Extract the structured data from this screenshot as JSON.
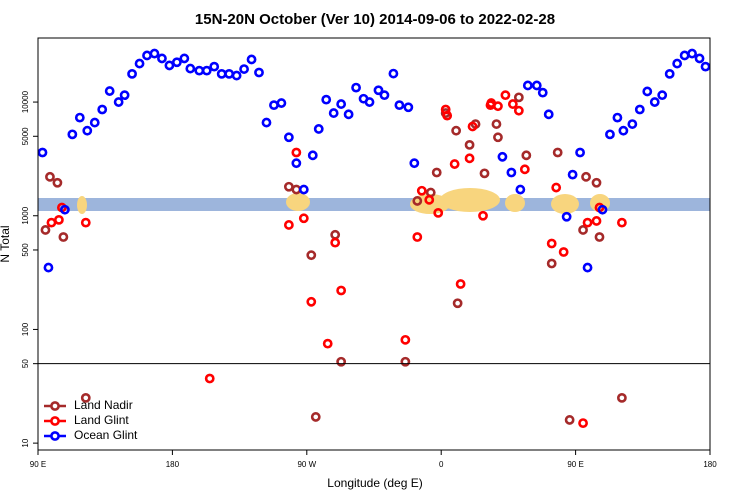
{
  "chart_data": {
    "type": "scatter",
    "title": "15N-20N October (Ver 10)   2014-09-06 to 2022-02-28",
    "x_label": "Longitude (deg E)",
    "y_label": "N Total",
    "xlim": [
      90,
      540
    ],
    "xticks": [
      {
        "value": 90,
        "label": "90 E"
      },
      180,
      {
        "value": 270,
        "label": "90 W"
      },
      {
        "value": 360,
        "label": "0"
      },
      {
        "value": 450,
        "label": "90 E"
      },
      {
        "value": 540,
        "label": "180"
      }
    ],
    "ylim": [
      8.7,
      36600
    ],
    "y_log": true,
    "yticks": [
      10,
      50,
      100,
      500,
      1000,
      5000,
      10000
    ],
    "hline": 50,
    "legend": "lower left",
    "series": [
      {
        "name": "Land Nadir",
        "color": "#a52a2a",
        "x": [
          95,
          98,
          103,
          107,
          122,
          258,
          263,
          273,
          276,
          289,
          293,
          336,
          344,
          353,
          357,
          363,
          370,
          371,
          379,
          383,
          389,
          397,
          398,
          412,
          417,
          434,
          438,
          446,
          455,
          457,
          464,
          466,
          481
        ],
        "values": [
          750,
          2200,
          1950,
          650,
          25,
          1800,
          1700,
          450,
          17,
          680,
          52,
          52,
          1350,
          1600,
          2400,
          8000,
          5600,
          170,
          4200,
          6400,
          2360,
          6400,
          4900,
          11000,
          3400,
          380,
          3600,
          16,
          750,
          2200,
          1950,
          650,
          25
        ]
      },
      {
        "name": "Land Glint",
        "color": "#ff0000",
        "x": [
          99,
          104,
          106,
          122,
          205,
          258,
          263,
          268,
          273,
          284,
          289,
          293,
          336,
          344,
          347,
          352,
          358,
          363,
          364,
          369,
          373,
          379,
          381,
          388,
          393,
          393.5,
          398,
          403,
          408,
          412,
          416,
          434,
          437,
          442,
          455,
          458,
          464,
          466,
          481
        ],
        "values": [
          870,
          920,
          1180,
          870,
          37,
          830,
          3600,
          950,
          175,
          75,
          580,
          220,
          81,
          650,
          1660,
          1380,
          1060,
          8600,
          7600,
          2850,
          251,
          3200,
          6100,
          1000,
          9400,
          9800,
          9200,
          11500,
          9600,
          8400,
          2560,
          570,
          1770,
          480,
          15,
          870,
          900,
          1180,
          870
        ]
      },
      {
        "name": "Ocean Glint",
        "color": "#0000ff",
        "x": [
          93,
          97,
          108,
          113,
          118,
          123,
          128,
          133,
          138,
          144,
          148,
          153,
          158,
          163,
          168,
          173,
          178,
          183,
          188,
          192,
          198,
          203,
          208,
          213,
          218,
          223,
          228,
          233,
          238,
          243,
          248,
          253,
          258,
          263,
          268,
          274,
          278,
          283,
          288,
          293,
          298,
          303,
          308,
          312,
          318,
          322,
          328,
          332,
          338,
          342,
          401,
          407,
          413,
          418,
          424,
          428,
          432,
          444,
          448,
          453,
          458,
          468,
          473,
          478,
          482,
          488,
          493,
          498,
          503,
          508,
          513,
          518,
          523,
          528,
          533,
          537
        ],
        "values": [
          3600,
          350,
          1130,
          5200,
          7300,
          5600,
          6600,
          8600,
          12500,
          10000,
          11500,
          17700,
          21800,
          25700,
          26700,
          24200,
          21000,
          22400,
          24200,
          19700,
          18900,
          18900,
          20500,
          17700,
          17700,
          17100,
          19500,
          23700,
          18200,
          6600,
          9400,
          9800,
          4900,
          2900,
          1700,
          3400,
          5800,
          10500,
          8000,
          9600,
          7800,
          13400,
          10700,
          10000,
          12700,
          11500,
          17800,
          9400,
          9000,
          2900,
          3300,
          2400,
          1700,
          14000,
          14000,
          12100,
          7800,
          980,
          2300,
          3600,
          350,
          1130,
          5200,
          7300,
          5600,
          6400,
          8600,
          12400,
          10000,
          11500,
          17700,
          21800,
          25700,
          26700,
          24200,
          20500
        ]
      }
    ]
  }
}
